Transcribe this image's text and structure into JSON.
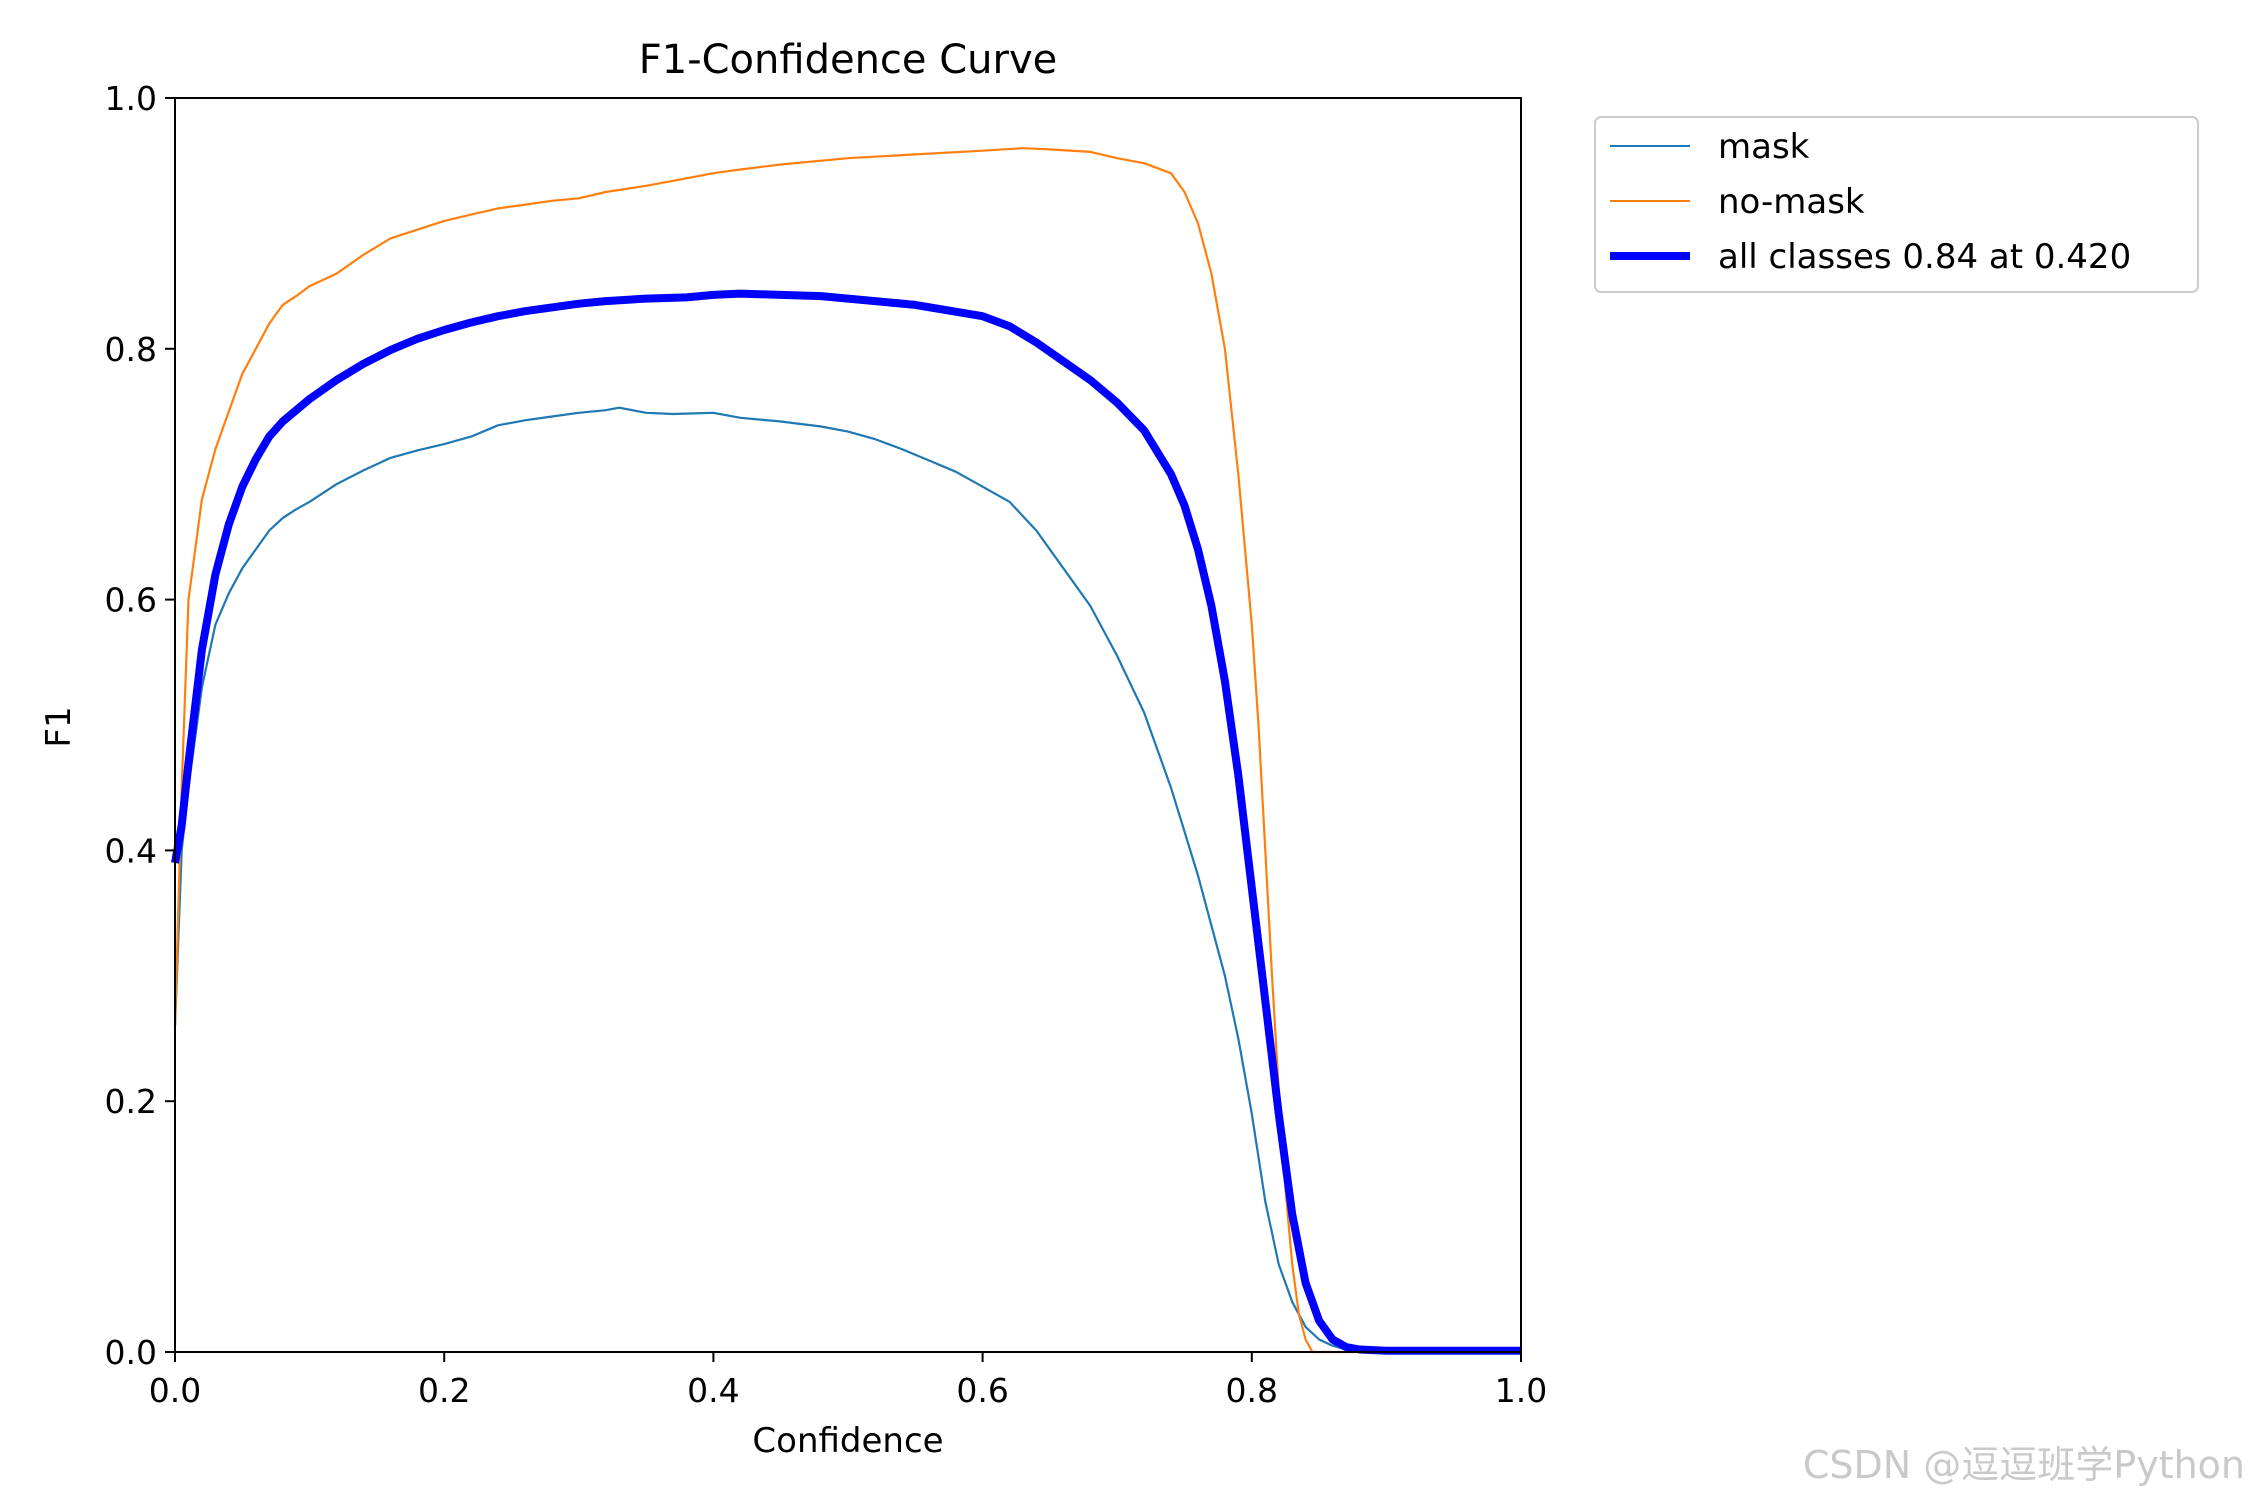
{
  "chart_data": {
    "type": "line",
    "title": "F1-Confidence Curve",
    "xlabel": "Confidence",
    "ylabel": "F1",
    "xlim": [
      0.0,
      1.0
    ],
    "ylim": [
      0.0,
      1.0
    ],
    "xticks": [
      "0.0",
      "0.2",
      "0.4",
      "0.6",
      "0.8",
      "1.0"
    ],
    "yticks": [
      "0.0",
      "0.2",
      "0.4",
      "0.6",
      "0.8",
      "1.0"
    ],
    "grid": false,
    "legend_position": "outside-top-right",
    "series": [
      {
        "name": "mask",
        "color": "#1f77b4",
        "width": "thin",
        "x": [
          0.0,
          0.005,
          0.01,
          0.02,
          0.03,
          0.04,
          0.05,
          0.06,
          0.07,
          0.08,
          0.09,
          0.1,
          0.12,
          0.14,
          0.16,
          0.18,
          0.2,
          0.22,
          0.24,
          0.26,
          0.28,
          0.3,
          0.32,
          0.33,
          0.35,
          0.37,
          0.4,
          0.42,
          0.45,
          0.48,
          0.5,
          0.52,
          0.54,
          0.56,
          0.58,
          0.6,
          0.62,
          0.64,
          0.66,
          0.68,
          0.7,
          0.72,
          0.74,
          0.76,
          0.78,
          0.79,
          0.8,
          0.81,
          0.82,
          0.83,
          0.84,
          0.85,
          0.86,
          0.87,
          0.88,
          0.9,
          0.95,
          1.0
        ],
        "y": [
          0.26,
          0.4,
          0.45,
          0.53,
          0.58,
          0.605,
          0.625,
          0.64,
          0.655,
          0.665,
          0.672,
          0.678,
          0.692,
          0.703,
          0.713,
          0.719,
          0.724,
          0.73,
          0.739,
          0.743,
          0.746,
          0.749,
          0.751,
          0.753,
          0.749,
          0.748,
          0.749,
          0.745,
          0.742,
          0.738,
          0.734,
          0.728,
          0.72,
          0.711,
          0.702,
          0.69,
          0.678,
          0.655,
          0.625,
          0.595,
          0.555,
          0.51,
          0.45,
          0.38,
          0.3,
          0.25,
          0.19,
          0.12,
          0.07,
          0.04,
          0.02,
          0.01,
          0.005,
          0.002,
          0.001,
          0.0,
          0.0,
          0.0
        ]
      },
      {
        "name": "no-mask",
        "color": "#ff7f0e",
        "width": "thin",
        "x": [
          0.0,
          0.005,
          0.01,
          0.02,
          0.03,
          0.04,
          0.05,
          0.06,
          0.07,
          0.08,
          0.09,
          0.1,
          0.12,
          0.14,
          0.16,
          0.18,
          0.2,
          0.22,
          0.24,
          0.26,
          0.28,
          0.3,
          0.32,
          0.35,
          0.38,
          0.4,
          0.42,
          0.45,
          0.5,
          0.55,
          0.6,
          0.63,
          0.65,
          0.68,
          0.7,
          0.72,
          0.74,
          0.75,
          0.76,
          0.77,
          0.78,
          0.79,
          0.8,
          0.805,
          0.81,
          0.815,
          0.82,
          0.825,
          0.83,
          0.835,
          0.84,
          0.845,
          0.85,
          0.9,
          0.95,
          1.0
        ],
        "y": [
          0.26,
          0.45,
          0.6,
          0.68,
          0.72,
          0.75,
          0.78,
          0.8,
          0.82,
          0.835,
          0.842,
          0.85,
          0.86,
          0.875,
          0.888,
          0.895,
          0.902,
          0.907,
          0.912,
          0.915,
          0.918,
          0.92,
          0.925,
          0.93,
          0.936,
          0.94,
          0.943,
          0.947,
          0.952,
          0.955,
          0.958,
          0.96,
          0.959,
          0.957,
          0.952,
          0.948,
          0.94,
          0.925,
          0.9,
          0.86,
          0.8,
          0.7,
          0.58,
          0.5,
          0.4,
          0.3,
          0.21,
          0.13,
          0.07,
          0.03,
          0.01,
          0.0,
          0.0,
          0.0,
          0.0,
          0.0
        ]
      },
      {
        "name": "all classes 0.84 at 0.420",
        "color": "#0000ff",
        "width": "thick",
        "x": [
          0.0,
          0.005,
          0.01,
          0.02,
          0.03,
          0.04,
          0.05,
          0.06,
          0.07,
          0.08,
          0.1,
          0.12,
          0.14,
          0.16,
          0.18,
          0.2,
          0.22,
          0.24,
          0.26,
          0.28,
          0.3,
          0.32,
          0.35,
          0.38,
          0.4,
          0.42,
          0.45,
          0.48,
          0.5,
          0.55,
          0.6,
          0.62,
          0.64,
          0.66,
          0.68,
          0.7,
          0.72,
          0.74,
          0.75,
          0.76,
          0.77,
          0.78,
          0.79,
          0.8,
          0.81,
          0.82,
          0.83,
          0.84,
          0.85,
          0.86,
          0.87,
          0.88,
          0.9,
          0.95,
          1.0
        ],
        "y": [
          0.39,
          0.42,
          0.47,
          0.56,
          0.62,
          0.66,
          0.69,
          0.712,
          0.73,
          0.742,
          0.76,
          0.775,
          0.788,
          0.799,
          0.808,
          0.815,
          0.821,
          0.826,
          0.83,
          0.833,
          0.836,
          0.838,
          0.84,
          0.841,
          0.843,
          0.844,
          0.843,
          0.842,
          0.84,
          0.835,
          0.826,
          0.818,
          0.805,
          0.79,
          0.775,
          0.757,
          0.735,
          0.7,
          0.675,
          0.64,
          0.595,
          0.535,
          0.46,
          0.37,
          0.28,
          0.19,
          0.11,
          0.055,
          0.025,
          0.01,
          0.004,
          0.002,
          0.001,
          0.001,
          0.001
        ]
      }
    ]
  },
  "watermark": "CSDN @逗逗班学Python"
}
